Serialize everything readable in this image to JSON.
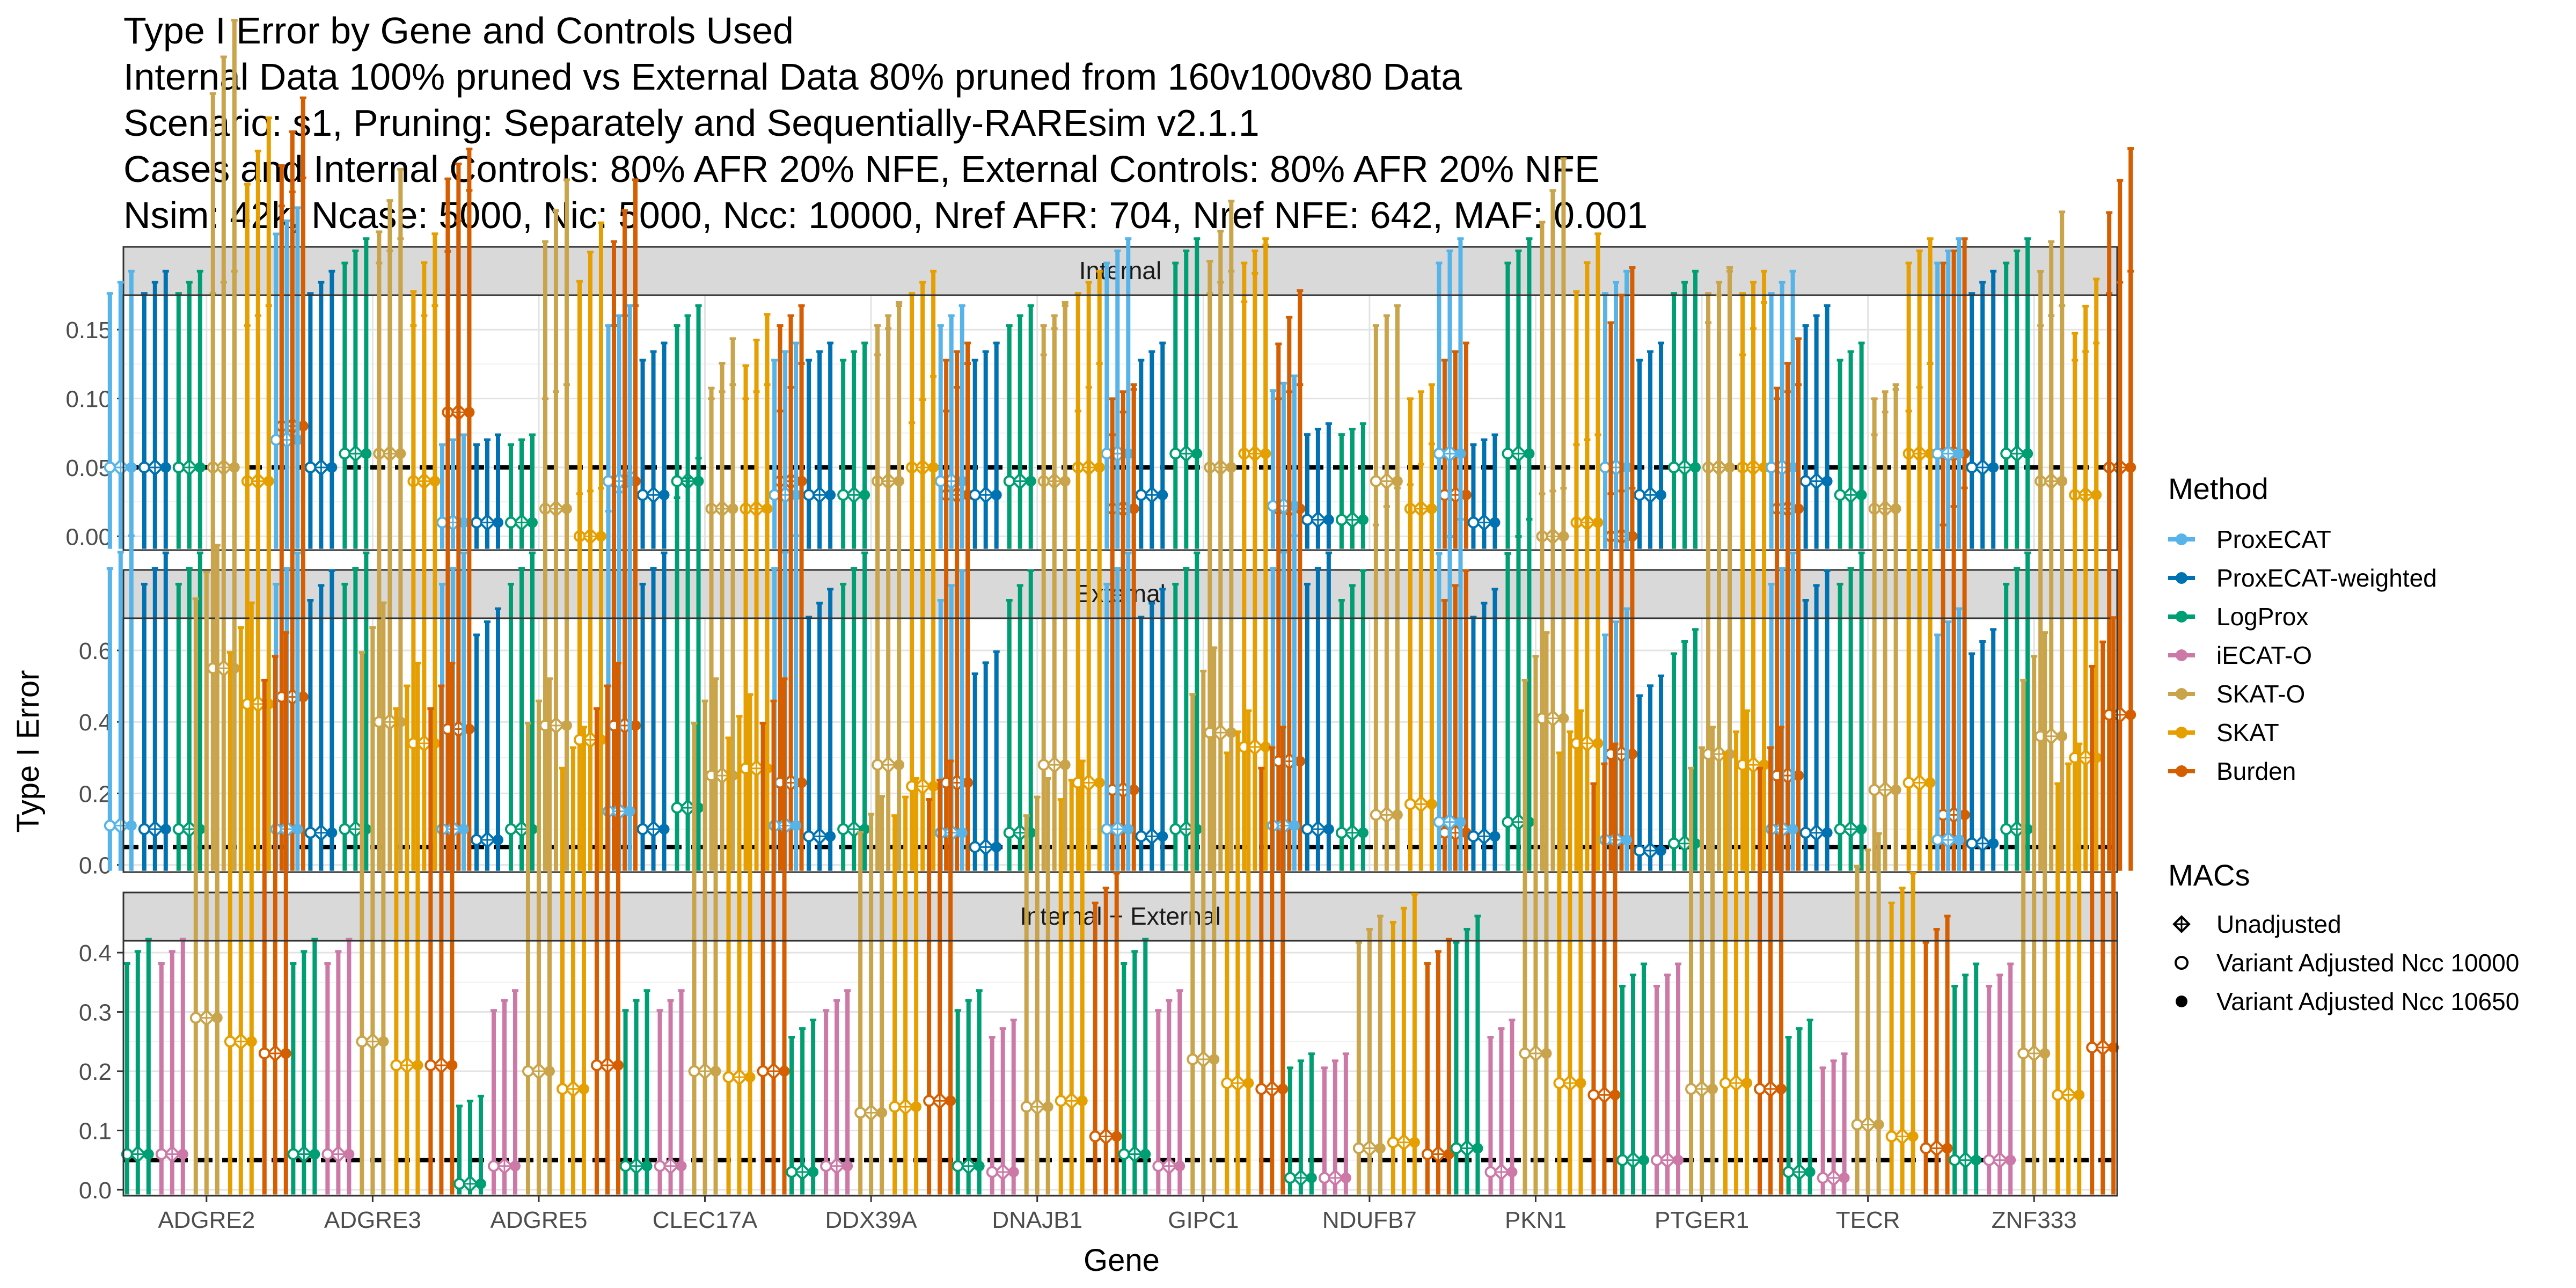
{
  "colors": {
    "ProxECAT": "#56B4E9",
    "ProxECAT-weighted": "#0072B2",
    "LogProx": "#009E73",
    "iECAT-O": "#CC79A7",
    "SKAT-O": "#C9A44A",
    "SKAT": "#E69F00",
    "Burden": "#D55E00"
  },
  "chart_data": {
    "type": "errorbar",
    "title_lines": [
      "Type I Error by Gene and Controls Used",
      "Internal Data 100% pruned vs External Data 80% pruned from 160v100v80 Data",
      "Scenario: s1, Pruning: Separately and Sequentially-RAREsim v2.1.1",
      "Cases and Internal Controls: 80% AFR 20% NFE, External Controls: 80% AFR 20% NFE",
      "Nsim: 42k, Ncase: 5000, Nic: 5000, Ncc: 10000, Nref AFR: 704, Nref NFE: 642, MAF: 0.001"
    ],
    "xlabel": "Gene",
    "ylabel": "Type I Error",
    "reference_line": 0.05,
    "genes": [
      "ADGRE2",
      "ADGRE3",
      "ADGRE5",
      "CLEC17A",
      "DDX39A",
      "DNAJB1",
      "GIPC1",
      "NDUFB7",
      "PKN1",
      "PTGER1",
      "TECR",
      "ZNF333"
    ],
    "legend": {
      "method_title": "Method",
      "methods": [
        "ProxECAT",
        "ProxECAT-weighted",
        "LogProx",
        "iECAT-O",
        "SKAT-O",
        "SKAT",
        "Burden"
      ],
      "macs_title": "MACs",
      "macs": [
        "Unadjusted",
        "Variant Adjusted Ncc 10000",
        "Variant Adjusted Ncc 10650"
      ]
    },
    "panels": [
      {
        "name": "Internal",
        "ylim": [
          -0.01,
          0.175
        ],
        "yticks": [
          0.0,
          0.05,
          0.1,
          0.15
        ],
        "ytick_labels": [
          "0.00",
          "0.05",
          "0.10",
          "0.15"
        ],
        "methods": [
          "ProxECAT",
          "ProxECAT-weighted",
          "LogProx",
          "SKAT-O",
          "SKAT",
          "Burden"
        ],
        "series": {
          "ProxECAT": [
            0.05,
            0.07,
            0.01,
            0.04,
            0.03,
            0.04,
            0.06,
            0.022,
            0.06,
            0.05,
            0.05,
            0.06
          ],
          "ProxECAT-weighted": [
            0.05,
            0.05,
            0.01,
            0.03,
            0.03,
            0.03,
            0.03,
            0.012,
            0.01,
            0.03,
            0.04,
            0.05
          ],
          "LogProx": [
            0.05,
            0.06,
            0.01,
            0.04,
            0.03,
            0.04,
            0.06,
            0.012,
            0.06,
            0.05,
            0.03,
            0.06
          ],
          "SKAT-O": [
            0.05,
            0.06,
            0.02,
            0.02,
            0.04,
            0.04,
            0.05,
            0.04,
            0.0,
            0.05,
            0.02,
            0.04
          ],
          "SKAT": [
            0.04,
            0.04,
            0.0,
            0.02,
            0.05,
            0.05,
            0.06,
            0.02,
            0.01,
            0.05,
            0.06,
            0.03
          ],
          "Burden": [
            0.08,
            0.09,
            0.04,
            0.04,
            0.03,
            0.02,
            0.02,
            0.03,
            0.0,
            0.02,
            0.06,
            0.05
          ]
        }
      },
      {
        "name": "External",
        "ylim": [
          -0.02,
          0.69
        ],
        "yticks": [
          0.0,
          0.2,
          0.4,
          0.6
        ],
        "ytick_labels": [
          "0.0",
          "0.2",
          "0.4",
          "0.6"
        ],
        "methods": [
          "ProxECAT",
          "ProxECAT-weighted",
          "LogProx",
          "SKAT-O",
          "SKAT",
          "Burden"
        ],
        "series": {
          "ProxECAT": [
            0.11,
            0.1,
            0.1,
            0.15,
            0.11,
            0.09,
            0.1,
            0.11,
            0.12,
            0.07,
            0.1,
            0.07
          ],
          "ProxECAT-weighted": [
            0.1,
            0.09,
            0.07,
            0.1,
            0.08,
            0.05,
            0.08,
            0.1,
            0.08,
            0.04,
            0.09,
            0.06
          ],
          "LogProx": [
            0.1,
            0.1,
            0.1,
            0.16,
            0.1,
            0.09,
            0.1,
            0.09,
            0.12,
            0.06,
            0.1,
            0.1
          ],
          "SKAT-O": [
            0.55,
            0.4,
            0.39,
            0.25,
            0.28,
            0.28,
            0.37,
            0.14,
            0.41,
            0.31,
            0.21,
            0.36
          ],
          "SKAT": [
            0.45,
            0.34,
            0.35,
            0.27,
            0.22,
            0.23,
            0.33,
            0.17,
            0.34,
            0.28,
            0.23,
            0.3
          ],
          "Burden": [
            0.47,
            0.38,
            0.39,
            0.23,
            0.23,
            0.21,
            0.29,
            0.09,
            0.31,
            0.25,
            0.14,
            0.42
          ]
        }
      },
      {
        "name": "Internal + External",
        "ylim": [
          -0.01,
          0.42
        ],
        "yticks": [
          0.0,
          0.1,
          0.2,
          0.3,
          0.4
        ],
        "ytick_labels": [
          "0.0",
          "0.1",
          "0.2",
          "0.3",
          "0.4"
        ],
        "methods": [
          "LogProx",
          "iECAT-O",
          "SKAT-O",
          "SKAT",
          "Burden"
        ],
        "series": {
          "LogProx": [
            0.06,
            0.06,
            0.01,
            0.04,
            0.03,
            0.04,
            0.06,
            0.02,
            0.07,
            0.05,
            0.03,
            0.05
          ],
          "iECAT-O": [
            0.06,
            0.06,
            0.04,
            0.04,
            0.04,
            0.03,
            0.04,
            0.02,
            0.03,
            0.05,
            0.02,
            0.05
          ],
          "SKAT-O": [
            0.29,
            0.25,
            0.2,
            0.2,
            0.13,
            0.14,
            0.22,
            0.07,
            0.23,
            0.17,
            0.11,
            0.23
          ],
          "SKAT": [
            0.25,
            0.21,
            0.17,
            0.19,
            0.14,
            0.15,
            0.18,
            0.08,
            0.18,
            0.18,
            0.09,
            0.16
          ],
          "Burden": [
            0.23,
            0.21,
            0.21,
            0.2,
            0.15,
            0.09,
            0.17,
            0.06,
            0.16,
            0.17,
            0.07,
            0.24
          ]
        }
      }
    ]
  }
}
